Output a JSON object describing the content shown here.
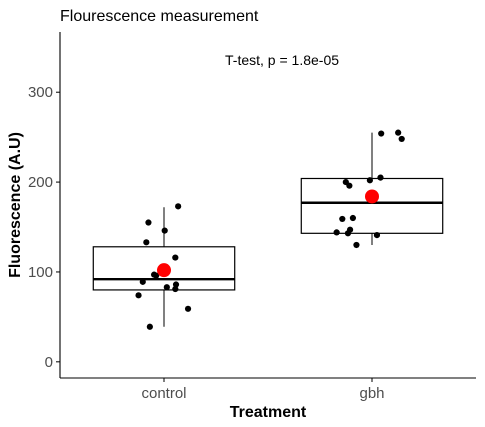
{
  "chart_data": {
    "type": "boxplot",
    "title": "Flourescence measurement",
    "annotation": "T-test, p = 1.8e-05",
    "xlabel": "Treatment",
    "ylabel": "Fluorescence (A.U)",
    "categories": [
      "control",
      "gbh"
    ],
    "ylim": [
      -18,
      367
    ],
    "yticks": [
      0,
      100,
      200,
      300
    ],
    "grid": false,
    "boxes": [
      {
        "category": "control",
        "whisker_low": 39,
        "q1": 80,
        "median": 92,
        "q3": 128,
        "whisker_high": 172,
        "mean": 102
      },
      {
        "category": "gbh",
        "whisker_low": 130,
        "q1": 143,
        "median": 177,
        "q3": 204,
        "whisker_high": 255,
        "mean": 184
      }
    ],
    "points": [
      {
        "category": "control",
        "jitter": 0.2,
        "y": 173
      },
      {
        "category": "control",
        "jitter": -0.22,
        "y": 155
      },
      {
        "category": "control",
        "jitter": 0.01,
        "y": 146
      },
      {
        "category": "control",
        "jitter": -0.25,
        "y": 133
      },
      {
        "category": "control",
        "jitter": 0.16,
        "y": 116
      },
      {
        "category": "control",
        "jitter": -0.14,
        "y": 97
      },
      {
        "category": "control",
        "jitter": -0.11,
        "y": 96
      },
      {
        "category": "control",
        "jitter": -0.3,
        "y": 89
      },
      {
        "category": "control",
        "jitter": 0.17,
        "y": 86
      },
      {
        "category": "control",
        "jitter": 0.04,
        "y": 83
      },
      {
        "category": "control",
        "jitter": 0.16,
        "y": 81
      },
      {
        "category": "control",
        "jitter": -0.36,
        "y": 74
      },
      {
        "category": "control",
        "jitter": 0.34,
        "y": 59
      },
      {
        "category": "control",
        "jitter": -0.2,
        "y": 39
      },
      {
        "category": "gbh",
        "jitter": 0.37,
        "y": 255
      },
      {
        "category": "gbh",
        "jitter": 0.13,
        "y": 254
      },
      {
        "category": "gbh",
        "jitter": 0.42,
        "y": 248
      },
      {
        "category": "gbh",
        "jitter": 0.12,
        "y": 205
      },
      {
        "category": "gbh",
        "jitter": -0.03,
        "y": 202
      },
      {
        "category": "gbh",
        "jitter": -0.37,
        "y": 200
      },
      {
        "category": "gbh",
        "jitter": -0.32,
        "y": 196
      },
      {
        "category": "gbh",
        "jitter": -0.27,
        "y": 160
      },
      {
        "category": "gbh",
        "jitter": -0.42,
        "y": 159
      },
      {
        "category": "gbh",
        "jitter": -0.31,
        "y": 147
      },
      {
        "category": "gbh",
        "jitter": -0.5,
        "y": 144
      },
      {
        "category": "gbh",
        "jitter": -0.34,
        "y": 143
      },
      {
        "category": "gbh",
        "jitter": 0.07,
        "y": 141
      },
      {
        "category": "gbh",
        "jitter": -0.22,
        "y": 130
      }
    ],
    "colors": {
      "point": "#000000",
      "mean_marker": "#ff0000",
      "box_fill": "#ffffff",
      "box_stroke": "#000000",
      "axis": "#000000",
      "tick_label": "#4d4d4d"
    }
  }
}
